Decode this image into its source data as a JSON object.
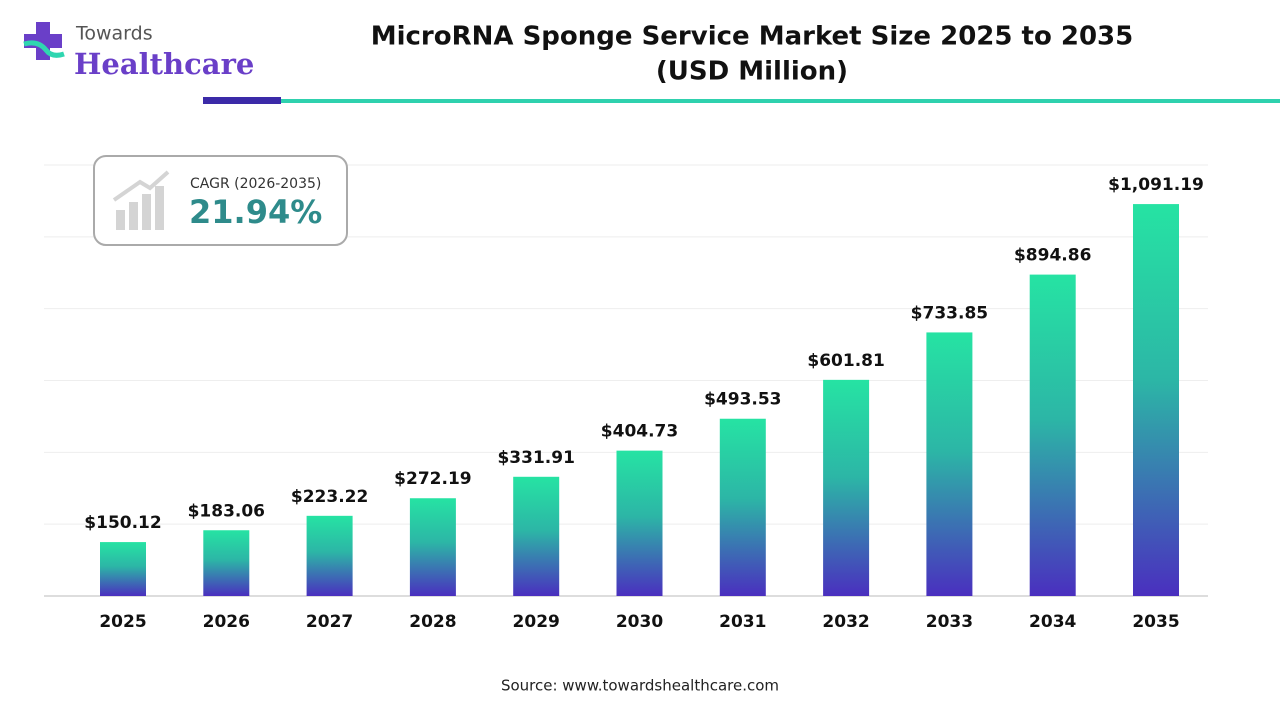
{
  "logo": {
    "line1": "Towards",
    "line2": "Healthcare"
  },
  "cagr": {
    "label": "CAGR (2026-2035)",
    "value": "21.94%"
  },
  "chart_data": {
    "type": "bar",
    "title": [
      "MicroRNA Sponge Service Market Size 2025 to 2035",
      "(USD Million)"
    ],
    "categories": [
      "2025",
      "2026",
      "2027",
      "2028",
      "2029",
      "2030",
      "2031",
      "2032",
      "2033",
      "2034",
      "2035"
    ],
    "values": [
      150.12,
      183.06,
      223.22,
      272.19,
      331.91,
      404.73,
      493.53,
      601.81,
      733.85,
      894.86,
      1091.19
    ],
    "value_labels": [
      "$150.12",
      "$183.06",
      "$223.22",
      "$272.19",
      "$331.91",
      "$404.73",
      "$493.53",
      "$601.81",
      "$733.85",
      "$894.86",
      "$1,091.19"
    ],
    "colors": [
      "#26e3a3",
      "#4a2fbf"
    ],
    "ylim": [
      0,
      1200
    ],
    "yticks": [
      0,
      200,
      400,
      600,
      800,
      1000,
      1200
    ],
    "grid": true,
    "source": "Source: www.towardshealthcare.com"
  }
}
